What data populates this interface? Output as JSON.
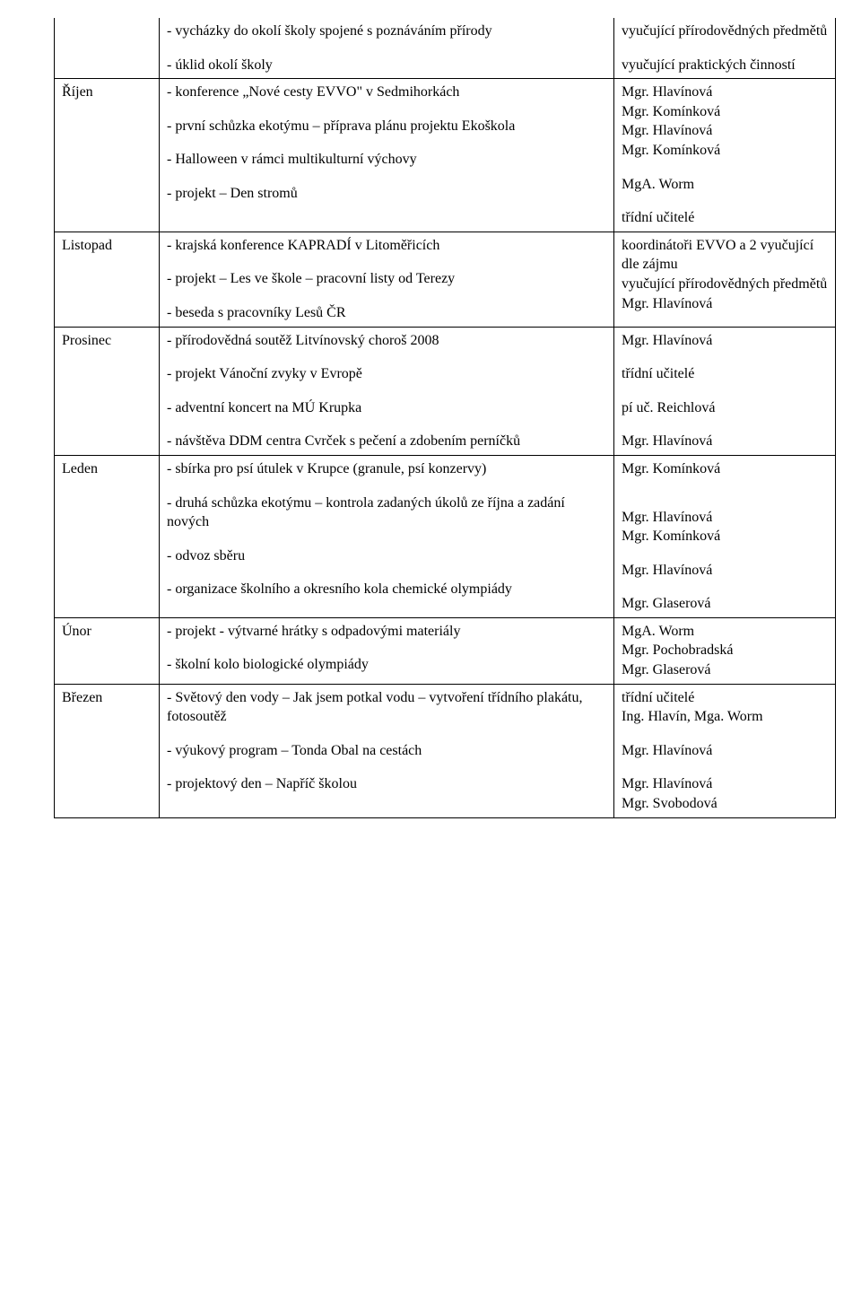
{
  "rows": [
    {
      "month": "",
      "left": [
        "- vycházky do okolí školy spojené s poznáváním přírody",
        "",
        "- úklid okolí školy"
      ],
      "right": [
        "vyučující přírodovědných předmětů",
        "",
        "vyučující praktických činností"
      ]
    },
    {
      "month": "Říjen",
      "left": [
        "- konference „Nové cesty EVVO\" v Sedmihorkách",
        "",
        "- první schůzka ekotýmu – příprava plánu projektu Ekoškola",
        "",
        "- Halloween v rámci multikulturní výchovy",
        "",
        "- projekt – Den stromů"
      ],
      "right": [
        "Mgr. Hlavínová",
        "Mgr. Komínková",
        "Mgr. Hlavínová",
        "Mgr. Komínková",
        "",
        "MgA. Worm",
        "",
        "třídní učitelé"
      ]
    },
    {
      "month": "Listopad",
      "left": [
        "- krajská konference KAPRADÍ v Litoměřicích",
        "",
        "- projekt – Les ve škole – pracovní listy od Terezy",
        "",
        "- beseda s pracovníky Lesů ČR"
      ],
      "right": [
        "koordinátoři EVVO a 2 vyučující dle zájmu",
        "vyučující přírodovědných předmětů",
        "Mgr. Hlavínová"
      ]
    },
    {
      "month": "Prosinec",
      "left": [
        "- přírodovědná soutěž Litvínovský choroš 2008",
        "",
        "- projekt Vánoční zvyky v Evropě",
        "",
        "- adventní koncert na MÚ Krupka",
        "",
        "- návštěva DDM centra Cvrček s pečení a zdobením perníčků"
      ],
      "right": [
        "Mgr. Hlavínová",
        "",
        "třídní učitelé",
        "",
        "pí uč. Reichlová",
        "",
        "Mgr. Hlavínová"
      ]
    },
    {
      "month": "Leden",
      "left": [
        "- sbírka pro psí útulek v Krupce (granule, psí konzervy)",
        "",
        "- druhá schůzka ekotýmu – kontrola zadaných úkolů ze října a zadání nových",
        "",
        "- odvoz sběru",
        "",
        "- organizace školního a okresního kola chemické olympiády"
      ],
      "right": [
        "Mgr. Komínková",
        "",
        "",
        "Mgr. Hlavínová",
        "Mgr. Komínková",
        "",
        "Mgr. Hlavínová",
        "",
        "Mgr. Glaserová"
      ]
    },
    {
      "month": "Únor",
      "left": [
        "- projekt - výtvarné hrátky s odpadovými materiály",
        "",
        "- školní kolo biologické olympiády"
      ],
      "right": [
        "MgA. Worm",
        "Mgr. Pochobradská",
        "Mgr. Glaserová"
      ]
    },
    {
      "month": "Březen",
      "left": [
        "- Světový den vody – Jak jsem potkal vodu – vytvoření třídního plakátu, fotosoutěž",
        "",
        "- výukový program – Tonda Obal na cestách",
        "",
        "- projektový den – Napříč školou"
      ],
      "right": [
        "třídní učitelé",
        "Ing. Hlavín, Mga. Worm",
        "",
        "Mgr. Hlavínová",
        "",
        "Mgr. Hlavínová",
        "Mgr. Svobodová"
      ]
    }
  ]
}
